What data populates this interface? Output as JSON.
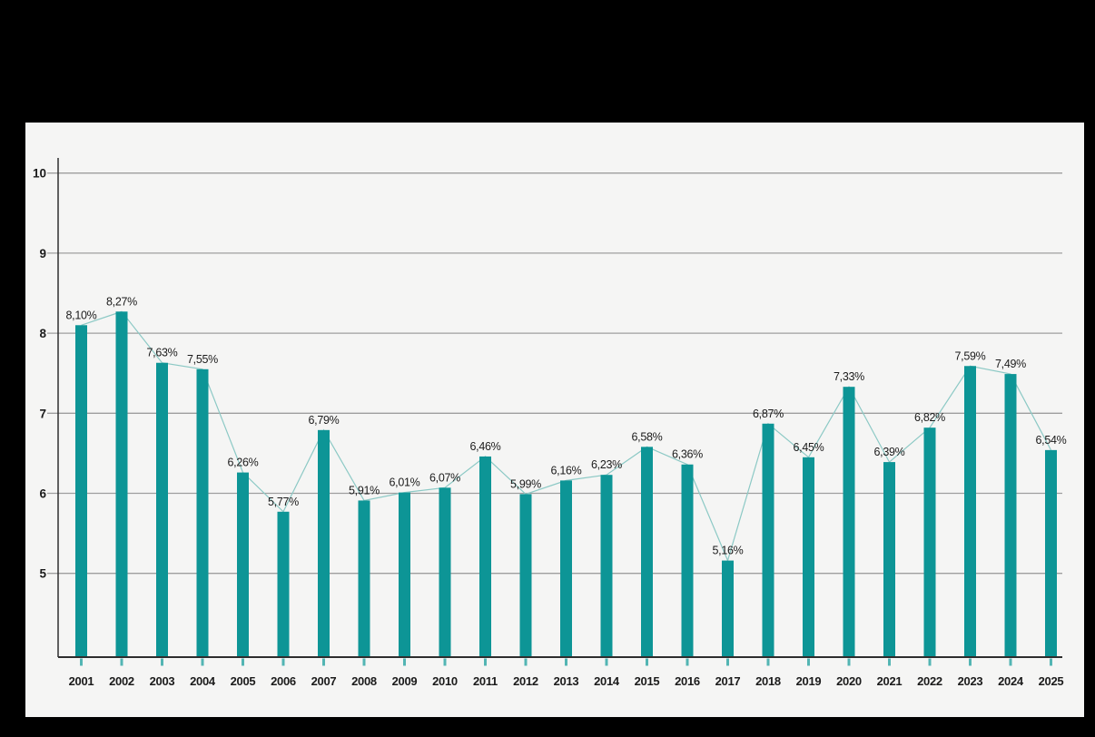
{
  "page": {
    "background_color": "#000000",
    "panel_background_color": "#f5f5f4"
  },
  "chart_data": {
    "type": "bar",
    "title": "",
    "xlabel": "",
    "ylabel": "",
    "categories": [
      "2001",
      "2002",
      "2003",
      "2004",
      "2005",
      "2006",
      "2007",
      "2008",
      "2009",
      "2010",
      "2011",
      "2012",
      "2013",
      "2014",
      "2015",
      "2016",
      "2017",
      "2018",
      "2019",
      "2020",
      "2021",
      "2022",
      "2023",
      "2024",
      "2025"
    ],
    "values": [
      8.1,
      8.27,
      7.63,
      7.55,
      6.26,
      5.77,
      6.79,
      5.91,
      6.01,
      6.07,
      6.46,
      5.99,
      6.16,
      6.23,
      6.58,
      6.36,
      5.16,
      6.87,
      6.45,
      7.33,
      6.39,
      6.82,
      7.59,
      7.49,
      6.54
    ],
    "value_labels": [
      "8,10%",
      "8,27%",
      "7,63%",
      "7,55%",
      "6,26%",
      "5,77%",
      "6,79%",
      "5,91%",
      "6,01%",
      "6,07%",
      "6,46%",
      "5,99%",
      "6,16%",
      "6,23%",
      "6,58%",
      "6,36%",
      "5,16%",
      "6,87%",
      "6,45%",
      "7,33%",
      "6,39%",
      "6,82%",
      "7,59%",
      "7,49%",
      "6,54%"
    ],
    "y_ticks": [
      10,
      9,
      8,
      7,
      6,
      5
    ],
    "ylim": [
      3.95,
      10.19
    ],
    "grid": true,
    "legend": false,
    "overlay_trend_line": true,
    "colors": {
      "bar": "#0d9596",
      "bar_baseline_tick": "#53b5b3",
      "trend_line": "#8cc9c5",
      "grid_line": "#9e9e9e",
      "axis_line": "#2e2e2e",
      "value_label_text": "#1b1b1b",
      "tick_label_text": "#1b1b1b"
    }
  }
}
